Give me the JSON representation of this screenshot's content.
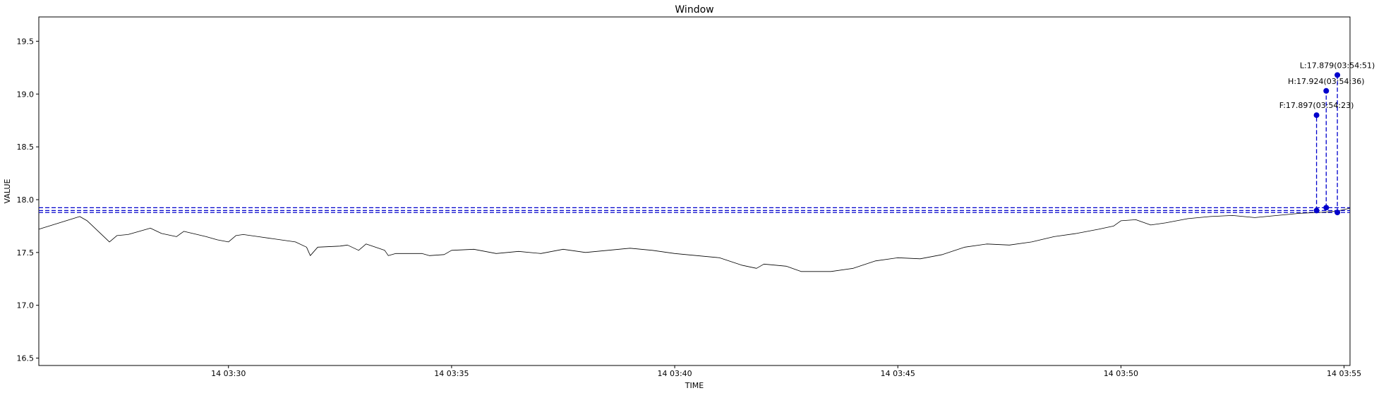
{
  "chart_data": {
    "type": "line",
    "title": "Window",
    "xlabel": "TIME",
    "ylabel": "VALUE",
    "xlim": [
      "03:25:45",
      "03:55:08"
    ],
    "ylim": [
      16.43,
      19.73
    ],
    "grid": false,
    "yticks": [
      {
        "value": 16.5,
        "label": "16.5"
      },
      {
        "value": 17.0,
        "label": "17.0"
      },
      {
        "value": 17.5,
        "label": "17.5"
      },
      {
        "value": 18.0,
        "label": "18.0"
      },
      {
        "value": 18.5,
        "label": "18.5"
      },
      {
        "value": 19.0,
        "label": "19.0"
      },
      {
        "value": 19.5,
        "label": "19.5"
      }
    ],
    "xticks": [
      {
        "value": "03:30:00",
        "label": "14 03:30"
      },
      {
        "value": "03:35:00",
        "label": "14 03:35"
      },
      {
        "value": "03:40:00",
        "label": "14 03:40"
      },
      {
        "value": "03:45:00",
        "label": "14 03:45"
      },
      {
        "value": "03:50:00",
        "label": "14 03:50"
      },
      {
        "value": "03:55:00",
        "label": "14 03:55"
      }
    ],
    "series": [
      {
        "color": "#000000",
        "x": [
          "03:25:45",
          "03:26:40",
          "03:26:50",
          "03:27:20",
          "03:27:30",
          "03:27:45",
          "03:28:15",
          "03:28:30",
          "03:28:50",
          "03:29:00",
          "03:29:30",
          "03:29:45",
          "03:30:00",
          "03:30:10",
          "03:30:20",
          "03:30:40",
          "03:31:00",
          "03:31:30",
          "03:31:45",
          "03:31:50",
          "03:32:00",
          "03:32:30",
          "03:32:40",
          "03:32:55",
          "03:33:05",
          "03:33:30",
          "03:33:35",
          "03:33:45",
          "03:34:20",
          "03:34:30",
          "03:34:50",
          "03:35:00",
          "03:35:30",
          "03:36:00",
          "03:36:30",
          "03:37:00",
          "03:37:30",
          "03:38:00",
          "03:38:30",
          "03:39:00",
          "03:39:30",
          "03:40:00",
          "03:40:30",
          "03:41:00",
          "03:41:30",
          "03:41:50",
          "03:42:00",
          "03:42:30",
          "03:42:50",
          "03:43:30",
          "03:44:00",
          "03:44:30",
          "03:45:00",
          "03:45:30",
          "03:46:00",
          "03:46:30",
          "03:47:00",
          "03:47:30",
          "03:48:00",
          "03:48:30",
          "03:49:00",
          "03:49:30",
          "03:49:50",
          "03:50:00",
          "03:50:20",
          "03:50:40",
          "03:51:00",
          "03:51:30",
          "03:52:00",
          "03:52:30",
          "03:53:00",
          "03:53:30",
          "03:54:00",
          "03:54:30",
          "03:54:50",
          "03:55:08"
        ],
        "y": [
          17.72,
          17.84,
          17.8,
          17.6,
          17.66,
          17.67,
          17.73,
          17.68,
          17.65,
          17.7,
          17.65,
          17.62,
          17.6,
          17.66,
          17.67,
          17.65,
          17.63,
          17.6,
          17.55,
          17.47,
          17.55,
          17.56,
          17.57,
          17.52,
          17.58,
          17.52,
          17.47,
          17.49,
          17.49,
          17.47,
          17.48,
          17.52,
          17.53,
          17.49,
          17.51,
          17.49,
          17.53,
          17.5,
          17.52,
          17.54,
          17.52,
          17.49,
          17.47,
          17.45,
          17.38,
          17.35,
          17.39,
          17.37,
          17.32,
          17.32,
          17.35,
          17.42,
          17.45,
          17.44,
          17.48,
          17.55,
          17.58,
          17.57,
          17.6,
          17.65,
          17.68,
          17.72,
          17.75,
          17.8,
          17.81,
          17.76,
          17.78,
          17.82,
          17.84,
          17.85,
          17.83,
          17.85,
          17.87,
          17.88,
          17.89,
          17.92
        ]
      }
    ],
    "hlines": [
      {
        "value": 17.924,
        "color": "#0000cc",
        "style": "dashed"
      },
      {
        "value": 17.897,
        "color": "#0000cc",
        "style": "dashed"
      },
      {
        "value": 17.879,
        "color": "#0000cc",
        "style": "dashed"
      }
    ],
    "markers": [
      {
        "label": "F:17.897(03:54:23)",
        "x": "03:54:23",
        "y": 17.897,
        "marker_y": 18.8,
        "color": "#0000cc"
      },
      {
        "label": "H:17.924(03:54:36)",
        "x": "03:54:36",
        "y": 17.924,
        "marker_y": 19.03,
        "color": "#0000cc"
      },
      {
        "label": "L:17.879(03:54:51)",
        "x": "03:54:51",
        "y": 17.879,
        "marker_y": 19.18,
        "color": "#0000cc"
      }
    ]
  }
}
